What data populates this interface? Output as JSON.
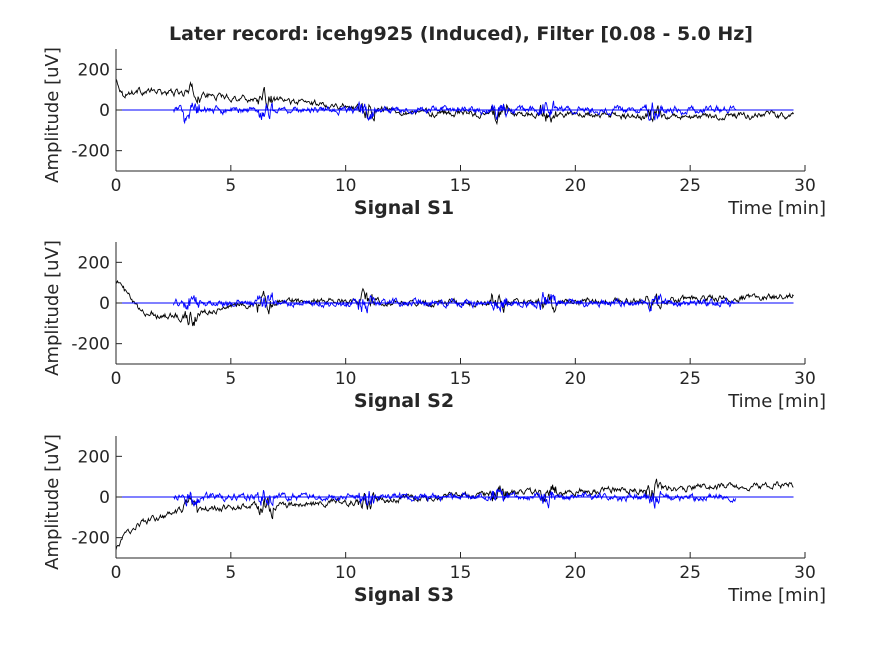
{
  "figure": {
    "title": "Later record: icehg925 (Induced), Filter [0.08 - 5.0 Hz]"
  },
  "colors": {
    "raw": "#000000",
    "filtered": "#0000ff",
    "axes": "#262626"
  },
  "chart_data": [
    {
      "type": "line",
      "label": "Signal S1",
      "xlabel": "Time [min]",
      "ylabel": "Amplitude [uV]",
      "xlim": [
        0,
        30
      ],
      "ylim": [
        -300,
        300
      ],
      "xticks": [
        0,
        5,
        10,
        15,
        20,
        25,
        30
      ],
      "yticks": [
        -200,
        0,
        200
      ],
      "series": [
        {
          "color": "#000000",
          "x_range": [
            0,
            29.5
          ],
          "amplitude": 12,
          "trend": [
            [
              0,
              150
            ],
            [
              0.3,
              80
            ],
            [
              1,
              95
            ],
            [
              3,
              80
            ],
            [
              6,
              55
            ],
            [
              9,
              30
            ],
            [
              11,
              10
            ],
            [
              13,
              -10
            ],
            [
              17,
              -20
            ],
            [
              21,
              -25
            ],
            [
              23.5,
              -40
            ],
            [
              27,
              -30
            ],
            [
              29.5,
              -25
            ]
          ]
        },
        {
          "color": "#0000ff",
          "x_range": [
            2.5,
            27
          ],
          "amplitude": 12,
          "trend": [
            [
              2.5,
              0
            ],
            [
              27,
              0
            ]
          ]
        }
      ]
    },
    {
      "type": "line",
      "label": "Signal S2",
      "xlabel": "Time [min]",
      "ylabel": "Amplitude [uV]",
      "xlim": [
        0,
        30
      ],
      "ylim": [
        -300,
        300
      ],
      "xticks": [
        0,
        5,
        10,
        15,
        20,
        25,
        30
      ],
      "yticks": [
        -200,
        0,
        200
      ],
      "series": [
        {
          "color": "#000000",
          "x_range": [
            0,
            29.5
          ],
          "amplitude": 12,
          "trend": [
            [
              0,
              120
            ],
            [
              0.5,
              40
            ],
            [
              1,
              -40
            ],
            [
              2,
              -60
            ],
            [
              3,
              -70
            ],
            [
              4,
              -40
            ],
            [
              5,
              -15
            ],
            [
              8,
              15
            ],
            [
              11,
              10
            ],
            [
              15,
              0
            ],
            [
              20,
              5
            ],
            [
              24,
              10
            ],
            [
              26,
              25
            ],
            [
              29.5,
              35
            ]
          ]
        },
        {
          "color": "#0000ff",
          "x_range": [
            2.5,
            27
          ],
          "amplitude": 12,
          "trend": [
            [
              2.5,
              0
            ],
            [
              27,
              0
            ]
          ]
        }
      ]
    },
    {
      "type": "line",
      "label": "Signal S3",
      "xlabel": "Time [min]",
      "ylabel": "Amplitude [uV]",
      "xlim": [
        0,
        30
      ],
      "ylim": [
        -300,
        300
      ],
      "xticks": [
        0,
        5,
        10,
        15,
        20,
        25,
        30
      ],
      "yticks": [
        -200,
        0,
        200
      ],
      "series": [
        {
          "color": "#000000",
          "x_range": [
            0,
            29.5
          ],
          "amplitude": 12,
          "trend": [
            [
              0,
              -260
            ],
            [
              0.3,
              -200
            ],
            [
              1,
              -130
            ],
            [
              2,
              -100
            ],
            [
              3,
              -70
            ],
            [
              5,
              -50
            ],
            [
              8,
              -40
            ],
            [
              11,
              -20
            ],
            [
              14,
              0
            ],
            [
              17,
              20
            ],
            [
              20,
              30
            ],
            [
              23,
              40
            ],
            [
              26,
              50
            ],
            [
              29.5,
              60
            ]
          ]
        },
        {
          "color": "#0000ff",
          "x_range": [
            2.5,
            27
          ],
          "amplitude": 12,
          "trend": [
            [
              2.5,
              0
            ],
            [
              27,
              0
            ]
          ]
        }
      ]
    }
  ]
}
